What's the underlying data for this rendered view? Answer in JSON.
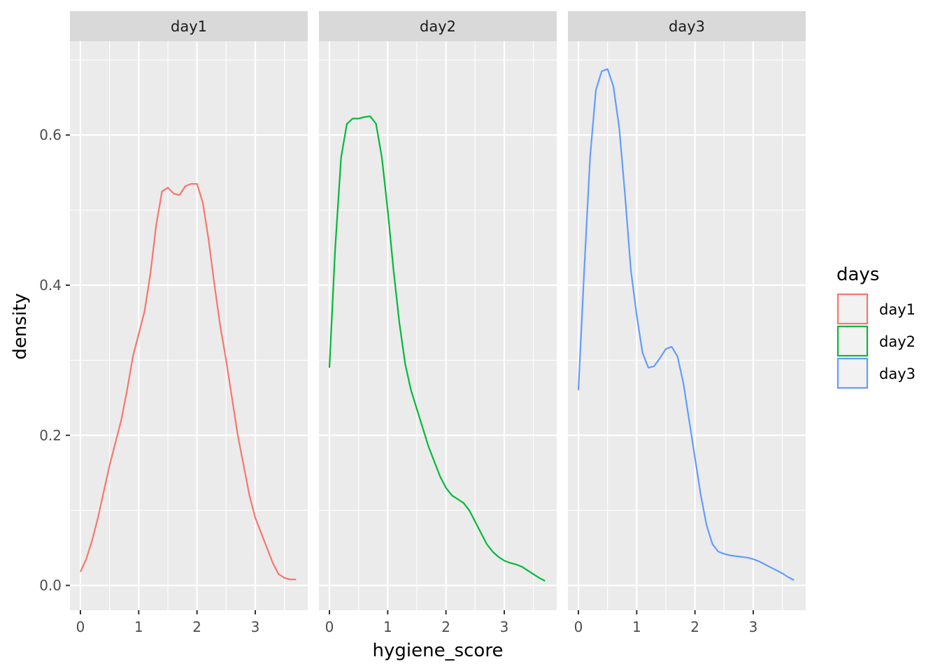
{
  "chart_data": {
    "type": "line",
    "subtype": "density",
    "facets": [
      "day1",
      "day2",
      "day3"
    ],
    "xlabel": "hygiene_score",
    "ylabel": "density",
    "xlim": [
      -0.18,
      3.9
    ],
    "ylim": [
      -0.033,
      0.725
    ],
    "x_ticks": [
      0,
      1,
      2,
      3
    ],
    "x_minor_ticks": [
      0.5,
      1.5,
      2.5,
      3.5
    ],
    "x_tick_labels": [
      "0",
      "1",
      "2",
      "3"
    ],
    "y_ticks": [
      0.0,
      0.2,
      0.4,
      0.6
    ],
    "y_minor_ticks": [
      0.1,
      0.3,
      0.5,
      0.7
    ],
    "y_tick_labels": [
      "0.0",
      "0.2",
      "0.4",
      "0.6"
    ],
    "legend": {
      "title": "days",
      "entries": [
        "day1",
        "day2",
        "day3"
      ],
      "position": "right"
    },
    "series": [
      {
        "name": "day1",
        "color": "#F8766D",
        "x": [
          0,
          0.1,
          0.2,
          0.3,
          0.4,
          0.5,
          0.6,
          0.7,
          0.8,
          0.9,
          1.0,
          1.1,
          1.2,
          1.3,
          1.4,
          1.5,
          1.6,
          1.7,
          1.8,
          1.9,
          2.0,
          2.1,
          2.2,
          2.3,
          2.4,
          2.5,
          2.6,
          2.7,
          2.8,
          2.9,
          3.0,
          3.1,
          3.2,
          3.3,
          3.4,
          3.5,
          3.6,
          3.7
        ],
        "y": [
          0.018,
          0.035,
          0.06,
          0.09,
          0.125,
          0.16,
          0.19,
          0.22,
          0.26,
          0.305,
          0.335,
          0.365,
          0.415,
          0.48,
          0.525,
          0.53,
          0.522,
          0.52,
          0.532,
          0.535,
          0.535,
          0.51,
          0.46,
          0.4,
          0.345,
          0.3,
          0.25,
          0.2,
          0.16,
          0.12,
          0.09,
          0.07,
          0.05,
          0.03,
          0.015,
          0.01,
          0.008,
          0.008
        ]
      },
      {
        "name": "day2",
        "color": "#00BA38",
        "x": [
          0,
          0.1,
          0.2,
          0.3,
          0.4,
          0.5,
          0.6,
          0.7,
          0.8,
          0.9,
          1.0,
          1.1,
          1.2,
          1.3,
          1.4,
          1.5,
          1.6,
          1.7,
          1.8,
          1.9,
          2.0,
          2.1,
          2.2,
          2.3,
          2.4,
          2.5,
          2.6,
          2.7,
          2.8,
          2.9,
          3.0,
          3.1,
          3.2,
          3.3,
          3.4,
          3.5,
          3.6,
          3.7
        ],
        "y": [
          0.29,
          0.45,
          0.57,
          0.615,
          0.622,
          0.622,
          0.624,
          0.625,
          0.615,
          0.57,
          0.5,
          0.42,
          0.35,
          0.295,
          0.26,
          0.235,
          0.21,
          0.185,
          0.165,
          0.145,
          0.13,
          0.12,
          0.115,
          0.11,
          0.1,
          0.085,
          0.07,
          0.055,
          0.045,
          0.038,
          0.033,
          0.03,
          0.028,
          0.025,
          0.02,
          0.015,
          0.01,
          0.006
        ]
      },
      {
        "name": "day3",
        "color": "#619CFF",
        "x": [
          0,
          0.1,
          0.2,
          0.3,
          0.4,
          0.5,
          0.6,
          0.7,
          0.8,
          0.9,
          1.0,
          1.1,
          1.2,
          1.3,
          1.4,
          1.5,
          1.6,
          1.7,
          1.8,
          1.9,
          2.0,
          2.1,
          2.2,
          2.3,
          2.4,
          2.5,
          2.6,
          2.7,
          2.8,
          2.9,
          3.0,
          3.1,
          3.2,
          3.3,
          3.4,
          3.5,
          3.6,
          3.7
        ],
        "y": [
          0.26,
          0.42,
          0.57,
          0.66,
          0.685,
          0.688,
          0.665,
          0.61,
          0.52,
          0.42,
          0.36,
          0.31,
          0.29,
          0.292,
          0.303,
          0.315,
          0.318,
          0.305,
          0.27,
          0.22,
          0.17,
          0.12,
          0.08,
          0.055,
          0.045,
          0.042,
          0.04,
          0.039,
          0.038,
          0.037,
          0.035,
          0.032,
          0.028,
          0.024,
          0.02,
          0.016,
          0.011,
          0.007
        ]
      }
    ]
  }
}
